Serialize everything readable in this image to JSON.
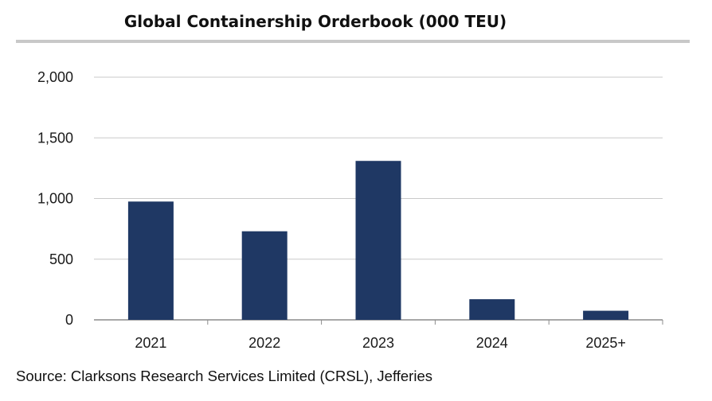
{
  "chart_data": {
    "type": "bar",
    "title": "Global Containership Orderbook (000 TEU)",
    "categories": [
      "2021",
      "2022",
      "2023",
      "2024",
      "2025+"
    ],
    "values": [
      975,
      730,
      1310,
      170,
      75
    ],
    "ylim": [
      0,
      2000
    ],
    "yticks": [
      0,
      500,
      1000,
      1500,
      2000
    ],
    "ytick_labels": [
      "0",
      "500",
      "1,000",
      "1,500",
      "2,000"
    ],
    "xlabel": "",
    "ylabel": "",
    "grid": true,
    "bar_color": "#1f3864"
  },
  "source": "Source: Clarksons Research Services Limited (CRSL), Jefferies"
}
